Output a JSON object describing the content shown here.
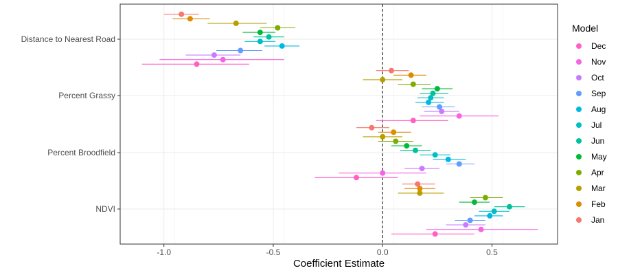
{
  "chart_data": {
    "type": "scatter",
    "subtype": "coefficient-plot-with-error-bars",
    "xlabel": "Coefficient Estimate",
    "ylabel": "",
    "xlim": [
      -1.2,
      0.8
    ],
    "x_ticks": [
      -1.0,
      -0.5,
      0.0,
      0.5
    ],
    "x_tick_labels": [
      "-1.0",
      "-0.5",
      "0.0",
      "0.5"
    ],
    "reference_line": {
      "x": 0,
      "style": "dashed"
    },
    "grid": true,
    "legend": {
      "title": "Model",
      "placement": "right"
    },
    "categories": [
      "Distance to Nearest Road",
      "Percent Grassy",
      "Percent Broodfield",
      "NDVI"
    ],
    "series": [
      {
        "name": "Dec",
        "color": "#FF61C3",
        "values": [
          {
            "category": "Distance to Nearest Road",
            "estimate": -0.85,
            "lower": -1.1,
            "upper": -0.61
          },
          {
            "category": "Percent Grassy",
            "estimate": 0.14,
            "lower": -0.03,
            "upper": 0.3
          },
          {
            "category": "Percent Broodfield",
            "estimate": -0.12,
            "lower": -0.31,
            "upper": 0.07
          },
          {
            "category": "NDVI",
            "estimate": 0.24,
            "lower": 0.04,
            "upper": 0.42
          }
        ]
      },
      {
        "name": "Nov",
        "color": "#F564E3",
        "values": [
          {
            "category": "Distance to Nearest Road",
            "estimate": -0.73,
            "lower": -1.02,
            "upper": -0.45
          },
          {
            "category": "Percent Grassy",
            "estimate": 0.35,
            "lower": 0.17,
            "upper": 0.53
          },
          {
            "category": "Percent Broodfield",
            "estimate": 0.0,
            "lower": -0.2,
            "upper": 0.2
          },
          {
            "category": "NDVI",
            "estimate": 0.45,
            "lower": 0.2,
            "upper": 0.71
          }
        ]
      },
      {
        "name": "Oct",
        "color": "#C77CFF",
        "values": [
          {
            "category": "Distance to Nearest Road",
            "estimate": -0.77,
            "lower": -0.9,
            "upper": -0.65
          },
          {
            "category": "Percent Grassy",
            "estimate": 0.27,
            "lower": 0.19,
            "upper": 0.35
          },
          {
            "category": "Percent Broodfield",
            "estimate": 0.18,
            "lower": 0.1,
            "upper": 0.26
          },
          {
            "category": "NDVI",
            "estimate": 0.38,
            "lower": 0.29,
            "upper": 0.47
          }
        ]
      },
      {
        "name": "Sep",
        "color": "#619CFF",
        "values": [
          {
            "category": "Distance to Nearest Road",
            "estimate": -0.65,
            "lower": -0.76,
            "upper": -0.55
          },
          {
            "category": "Percent Grassy",
            "estimate": 0.26,
            "lower": 0.18,
            "upper": 0.33
          },
          {
            "category": "Percent Broodfield",
            "estimate": 0.35,
            "lower": 0.29,
            "upper": 0.42
          },
          {
            "category": "NDVI",
            "estimate": 0.4,
            "lower": 0.33,
            "upper": 0.47
          }
        ]
      },
      {
        "name": "Aug",
        "color": "#00B9E3",
        "values": [
          {
            "category": "Distance to Nearest Road",
            "estimate": -0.46,
            "lower": -0.54,
            "upper": -0.38
          },
          {
            "category": "Percent Grassy",
            "estimate": 0.21,
            "lower": 0.15,
            "upper": 0.28
          },
          {
            "category": "Percent Broodfield",
            "estimate": 0.3,
            "lower": 0.23,
            "upper": 0.38
          },
          {
            "category": "NDVI",
            "estimate": 0.49,
            "lower": 0.42,
            "upper": 0.55
          }
        ]
      },
      {
        "name": "Jul",
        "color": "#00BFC4",
        "values": [
          {
            "category": "Distance to Nearest Road",
            "estimate": -0.56,
            "lower": -0.63,
            "upper": -0.49
          },
          {
            "category": "Percent Grassy",
            "estimate": 0.22,
            "lower": 0.16,
            "upper": 0.28
          },
          {
            "category": "Percent Broodfield",
            "estimate": 0.24,
            "lower": 0.17,
            "upper": 0.31
          },
          {
            "category": "NDVI",
            "estimate": 0.51,
            "lower": 0.44,
            "upper": 0.58
          }
        ]
      },
      {
        "name": "Jun",
        "color": "#00C19A",
        "values": [
          {
            "category": "Distance to Nearest Road",
            "estimate": -0.52,
            "lower": -0.59,
            "upper": -0.45
          },
          {
            "category": "Percent Grassy",
            "estimate": 0.23,
            "lower": 0.17,
            "upper": 0.3
          },
          {
            "category": "Percent Broodfield",
            "estimate": 0.15,
            "lower": 0.08,
            "upper": 0.22
          },
          {
            "category": "NDVI",
            "estimate": 0.58,
            "lower": 0.51,
            "upper": 0.65
          }
        ]
      },
      {
        "name": "May",
        "color": "#00BA38",
        "values": [
          {
            "category": "Distance to Nearest Road",
            "estimate": -0.56,
            "lower": -0.64,
            "upper": -0.49
          },
          {
            "category": "Percent Grassy",
            "estimate": 0.25,
            "lower": 0.18,
            "upper": 0.32
          },
          {
            "category": "Percent Broodfield",
            "estimate": 0.11,
            "lower": 0.04,
            "upper": 0.18
          },
          {
            "category": "NDVI",
            "estimate": 0.42,
            "lower": 0.35,
            "upper": 0.49
          }
        ]
      },
      {
        "name": "Apr",
        "color": "#7CAE00",
        "values": [
          {
            "category": "Distance to Nearest Road",
            "estimate": -0.48,
            "lower": -0.56,
            "upper": -0.4
          },
          {
            "category": "Percent Grassy",
            "estimate": 0.14,
            "lower": 0.07,
            "upper": 0.22
          },
          {
            "category": "Percent Broodfield",
            "estimate": 0.06,
            "lower": -0.02,
            "upper": 0.14
          },
          {
            "category": "NDVI",
            "estimate": 0.47,
            "lower": 0.4,
            "upper": 0.55
          }
        ]
      },
      {
        "name": "Mar",
        "color": "#B79F00",
        "values": [
          {
            "category": "Distance to Nearest Road",
            "estimate": -0.67,
            "lower": -0.8,
            "upper": -0.53
          },
          {
            "category": "Percent Grassy",
            "estimate": 0.0,
            "lower": -0.09,
            "upper": 0.09
          },
          {
            "category": "Percent Broodfield",
            "estimate": 0.0,
            "lower": -0.09,
            "upper": 0.09
          },
          {
            "category": "NDVI",
            "estimate": 0.17,
            "lower": 0.07,
            "upper": 0.28
          }
        ]
      },
      {
        "name": "Feb",
        "color": "#DE8C00",
        "values": [
          {
            "category": "Distance to Nearest Road",
            "estimate": -0.88,
            "lower": -0.96,
            "upper": -0.79
          },
          {
            "category": "Percent Grassy",
            "estimate": 0.13,
            "lower": 0.05,
            "upper": 0.2
          },
          {
            "category": "Percent Broodfield",
            "estimate": 0.05,
            "lower": -0.02,
            "upper": 0.13
          },
          {
            "category": "NDVI",
            "estimate": 0.17,
            "lower": 0.1,
            "upper": 0.24
          }
        ]
      },
      {
        "name": "Jan",
        "color": "#F8766D",
        "values": [
          {
            "category": "Distance to Nearest Road",
            "estimate": -0.92,
            "lower": -1.0,
            "upper": -0.84
          },
          {
            "category": "Percent Grassy",
            "estimate": 0.04,
            "lower": -0.03,
            "upper": 0.12
          },
          {
            "category": "Percent Broodfield",
            "estimate": -0.05,
            "lower": -0.12,
            "upper": 0.03
          },
          {
            "category": "NDVI",
            "estimate": 0.16,
            "lower": 0.09,
            "upper": 0.24
          }
        ]
      }
    ]
  }
}
